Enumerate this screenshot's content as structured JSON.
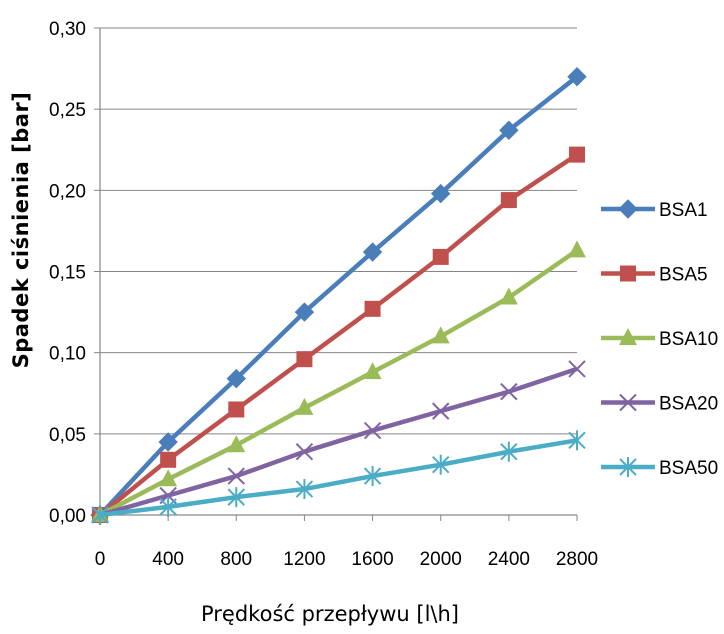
{
  "chart_data": {
    "type": "line",
    "xlabel": "Prędkość przepływu [l\\h]",
    "ylabel": "Spadek ciśnienia [bar]",
    "x": [
      0,
      400,
      800,
      1200,
      1600,
      2000,
      2400,
      2800
    ],
    "x_tick_labels": [
      "0",
      "400",
      "800",
      "1200",
      "1600",
      "2000",
      "2400",
      "2800"
    ],
    "ylim": [
      0,
      0.3
    ],
    "y_tick_labels": [
      "0,00",
      "0,05",
      "0,10",
      "0,15",
      "0,20",
      "0,25",
      "0,30"
    ],
    "grid": "horizontal",
    "legend_position": "right",
    "series": [
      {
        "name": "BSA1",
        "marker": "diamond",
        "color": "#4a7ebb",
        "values": [
          0,
          0.045,
          0.084,
          0.125,
          0.162,
          0.198,
          0.237,
          0.27
        ]
      },
      {
        "name": "BSA5",
        "marker": "square",
        "color": "#c0504d",
        "values": [
          0,
          0.034,
          0.065,
          0.096,
          0.127,
          0.159,
          0.194,
          0.222
        ]
      },
      {
        "name": "BSA10",
        "marker": "triangle",
        "color": "#9bbb59",
        "values": [
          0,
          0.022,
          0.043,
          0.066,
          0.088,
          0.11,
          0.134,
          0.163
        ]
      },
      {
        "name": "BSA20",
        "marker": "x",
        "color": "#8064a2",
        "values": [
          0,
          0.012,
          0.024,
          0.039,
          0.052,
          0.064,
          0.076,
          0.09
        ]
      },
      {
        "name": "BSA50",
        "marker": "star",
        "color": "#4bacc6",
        "values": [
          0,
          0.005,
          0.011,
          0.016,
          0.024,
          0.031,
          0.039,
          0.046
        ]
      }
    ]
  }
}
